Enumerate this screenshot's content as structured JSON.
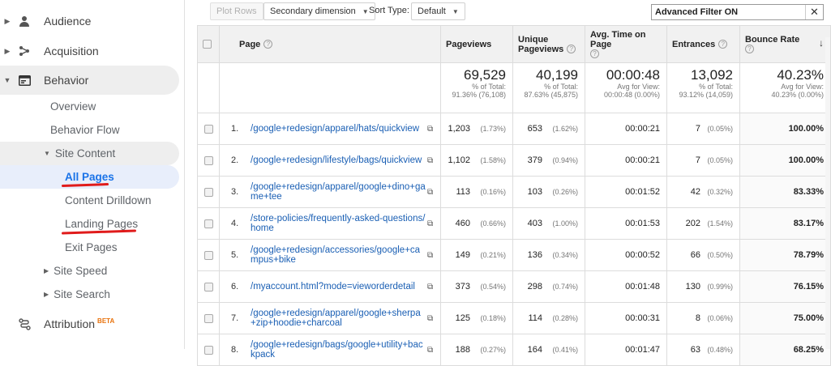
{
  "sidebar": {
    "audience": "Audience",
    "acquisition": "Acquisition",
    "behavior": "Behavior",
    "overview": "Overview",
    "behavior_flow": "Behavior Flow",
    "site_content": "Site Content",
    "all_pages": "All Pages",
    "content_drilldown": "Content Drilldown",
    "landing_pages": "Landing Pages",
    "exit_pages": "Exit Pages",
    "site_speed": "Site Speed",
    "site_search": "Site Search",
    "attribution": "Attribution",
    "beta": "BETA"
  },
  "toolbar": {
    "plot_rows": "Plot Rows",
    "secondary_dimension": "Secondary dimension",
    "sort_type_label": "Sort Type:",
    "sort_type_value": "Default",
    "filter_text": "Advanced Filter ON",
    "clear": "✕"
  },
  "table": {
    "headers": {
      "page": "Page",
      "pageviews": "Pageviews",
      "unique1": "Unique",
      "unique2": "Pageviews",
      "avg_time": "Avg. Time on Page",
      "entrances": "Entrances",
      "bounce": "Bounce Rate"
    },
    "totals": {
      "pageviews": {
        "big": "69,529",
        "l1": "% of Total:",
        "l2": "91.36% (76,108)"
      },
      "unique": {
        "big": "40,199",
        "l1": "% of Total:",
        "l2": "87.63% (45,875)"
      },
      "avg_time": {
        "big": "00:00:48",
        "l1": "Avg for View:",
        "l2": "00:00:48 (0.00%)"
      },
      "entrances": {
        "big": "13,092",
        "l1": "% of Total:",
        "l2": "93.12% (14,059)"
      },
      "bounce": {
        "big": "40.23%",
        "l1": "Avg for View:",
        "l2": "40.23% (0.00%)"
      }
    },
    "rows": [
      {
        "idx": "1.",
        "page": "/google+redesign/apparel/hats/quickview",
        "pv": "1,203",
        "pv_pct": "(1.73%)",
        "upv": "653",
        "upv_pct": "(1.62%)",
        "time": "00:00:21",
        "ent": "7",
        "ent_pct": "(0.05%)",
        "bounce": "100.00%"
      },
      {
        "idx": "2.",
        "page": "/google+redesign/lifestyle/bags/quickview",
        "pv": "1,102",
        "pv_pct": "(1.58%)",
        "upv": "379",
        "upv_pct": "(0.94%)",
        "time": "00:00:21",
        "ent": "7",
        "ent_pct": "(0.05%)",
        "bounce": "100.00%"
      },
      {
        "idx": "3.",
        "page": "/google+redesign/apparel/google+dino+game+tee",
        "pv": "113",
        "pv_pct": "(0.16%)",
        "upv": "103",
        "upv_pct": "(0.26%)",
        "time": "00:01:52",
        "ent": "42",
        "ent_pct": "(0.32%)",
        "bounce": "83.33%"
      },
      {
        "idx": "4.",
        "page": "/store-policies/frequently-asked-questions/home",
        "pv": "460",
        "pv_pct": "(0.66%)",
        "upv": "403",
        "upv_pct": "(1.00%)",
        "time": "00:01:53",
        "ent": "202",
        "ent_pct": "(1.54%)",
        "bounce": "83.17%"
      },
      {
        "idx": "5.",
        "page": "/google+redesign/accessories/google+campus+bike",
        "pv": "149",
        "pv_pct": "(0.21%)",
        "upv": "136",
        "upv_pct": "(0.34%)",
        "time": "00:00:52",
        "ent": "66",
        "ent_pct": "(0.50%)",
        "bounce": "78.79%"
      },
      {
        "idx": "6.",
        "page": "/myaccount.html?mode=vieworderdetail",
        "pv": "373",
        "pv_pct": "(0.54%)",
        "upv": "298",
        "upv_pct": "(0.74%)",
        "time": "00:01:48",
        "ent": "130",
        "ent_pct": "(0.99%)",
        "bounce": "76.15%"
      },
      {
        "idx": "7.",
        "page": "/google+redesign/apparel/google+sherpa+zip+hoodie+charcoal",
        "pv": "125",
        "pv_pct": "(0.18%)",
        "upv": "114",
        "upv_pct": "(0.28%)",
        "time": "00:00:31",
        "ent": "8",
        "ent_pct": "(0.06%)",
        "bounce": "75.00%"
      },
      {
        "idx": "8.",
        "page": "/google+redesign/bags/google+utility+backpack",
        "pv": "188",
        "pv_pct": "(0.27%)",
        "upv": "164",
        "upv_pct": "(0.41%)",
        "time": "00:01:47",
        "ent": "63",
        "ent_pct": "(0.48%)",
        "bounce": "68.25%"
      }
    ]
  },
  "colors": {
    "link": "#1a5fb4",
    "active": "#1a73e8",
    "underline": "#e01b1b"
  }
}
